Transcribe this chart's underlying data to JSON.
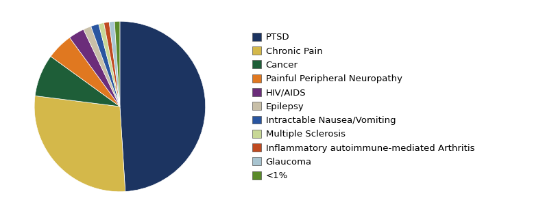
{
  "labels": [
    "PTSD",
    "Chronic Pain",
    "Cancer",
    "Painful Peripheral Neuropathy",
    "HIV/AIDS",
    "Epilepsy",
    "Intractable Nausea/Vomiting",
    "Multiple Sclerosis",
    "Inflammatory autoimmune-mediated Arthritis",
    "Glaucoma",
    "<1%"
  ],
  "values": [
    49,
    28,
    8,
    5,
    3,
    1.5,
    1.5,
    1,
    1,
    1,
    1
  ],
  "colors": [
    "#1C3461",
    "#D4B84A",
    "#1E5E38",
    "#E07820",
    "#6B2D7A",
    "#C8BFA8",
    "#2955A0",
    "#C8D896",
    "#C04A20",
    "#A8C4D0",
    "#5A8A2A"
  ],
  "legend_fontsize": 9.5,
  "figsize": [
    7.95,
    3.12
  ],
  "dpi": 100,
  "background_color": "#FFFFFF"
}
